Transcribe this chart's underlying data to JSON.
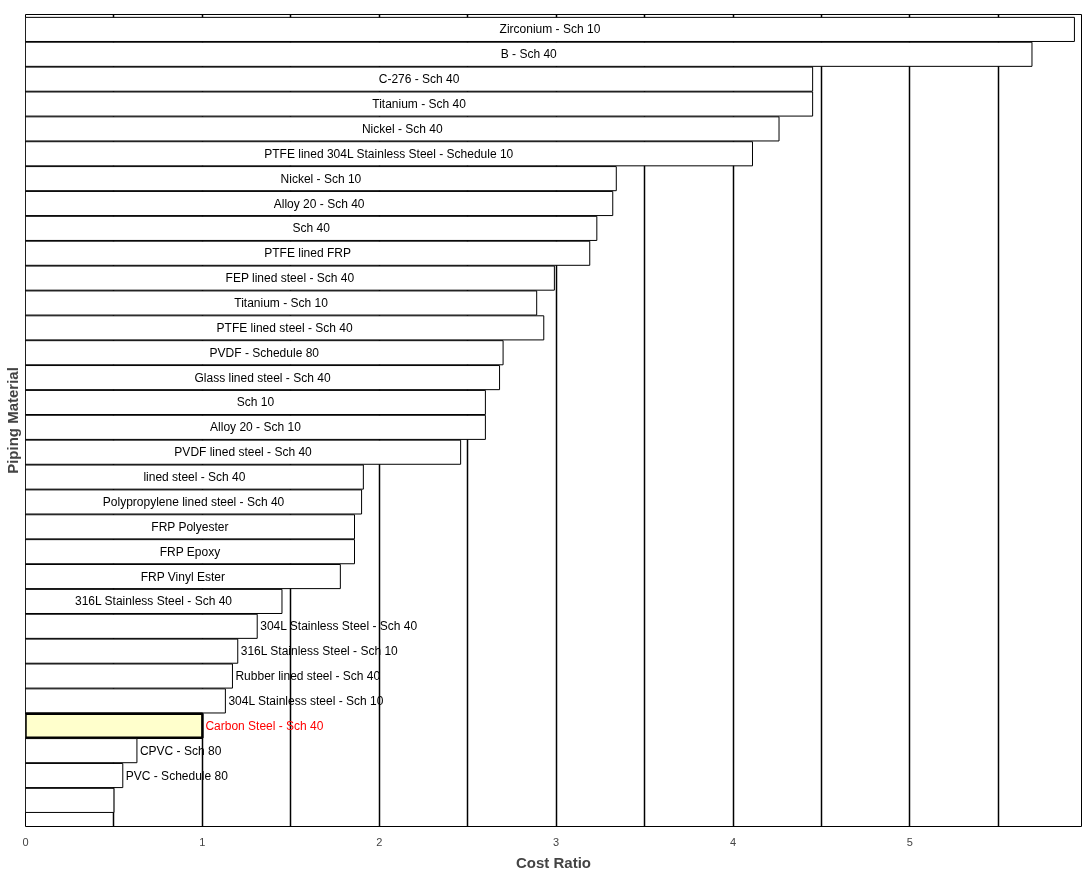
{
  "chart_data": {
    "type": "bar",
    "orientation": "horizontal",
    "xlabel": "Cost Ratio",
    "ylabel": "Piping Material",
    "categories": [
      "Zirconium - Sch 10",
      "B - Sch 40",
      "C-276 - Sch 40",
      "Titanium - Sch 40",
      "Nickel - Sch 40",
      "PTFE lined 304L Stainless Steel - Schedule 10",
      "Nickel - Sch 10",
      "Alloy 20 - Sch 40",
      "Sch 40",
      "PTFE lined FRP",
      "FEP lined steel - Sch 40",
      "Titanium - Sch 10",
      "PTFE lined steel - Sch 40",
      "PVDF - Schedule 80",
      "Glass lined steel - Sch 40",
      "Sch 10",
      "Alloy 20 - Sch 10",
      "PVDF lined steel - Sch 40",
      "lined steel - Sch 40",
      "Polypropylene lined steel - Sch 40",
      "FRP Polyester",
      "FRP Epoxy",
      "FRP Vinyl Ester",
      "316L Stainless Steel - Sch 40",
      "304L Stainless Steel - Sch 40",
      "316L Stainless Steel - Sch 10",
      "Rubber lined steel - Sch 40",
      "304L Stainless steel - Sch 10",
      "Carbon Steel - Sch 40",
      "CPVC - Sch 80",
      "PVC - Schedule 80",
      null
    ],
    "values": [
      5.93,
      5.69,
      4.45,
      4.45,
      4.26,
      4.11,
      3.34,
      3.32,
      3.23,
      3.19,
      2.99,
      2.89,
      2.93,
      2.7,
      2.68,
      2.6,
      2.6,
      2.46,
      1.91,
      1.9,
      1.86,
      1.86,
      1.78,
      1.45,
      1.31,
      1.2,
      1.17,
      1.13,
      1.0,
      0.63,
      0.55,
      0.5
    ],
    "color": "#ffffff",
    "colors": [
      "#ffffff",
      "#ffffff",
      "#ffffff",
      "#ffffff",
      "#ffffff",
      "#ffffff",
      "#ffffff",
      "#ffffff",
      "#ffffff",
      "#ffffff",
      "#ffffff",
      "#ffffff",
      "#ffffff",
      "#ffffff",
      "#ffffff",
      "#ffffff",
      "#ffffff",
      "#ffffff",
      "#ffffff",
      "#ffffff",
      "#ffffff",
      "#ffffff",
      "#ffffff",
      "#ffffff",
      "#ffffff",
      "#ffffff",
      "#ffffff",
      "#ffffff",
      "#ffffcc",
      "#ffffff",
      "#ffffff",
      "#ffffff"
    ],
    "xlim": [
      0,
      5.97
    ],
    "xticks": [
      0,
      {
        "value": 0.5,
        "label": null
      },
      1,
      {
        "value": 1.5,
        "label": null
      },
      2,
      {
        "value": 2.5,
        "label": null
      },
      3,
      {
        "value": 3.5,
        "label": null
      },
      4,
      {
        "value": 4.5,
        "label": null
      },
      5,
      {
        "value": 5.5,
        "label": null
      }
    ],
    "grid": "x",
    "tick_labels": "x"
  }
}
